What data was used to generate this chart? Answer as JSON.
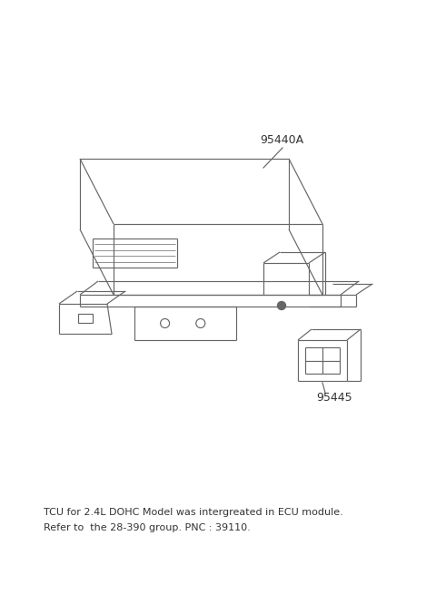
{
  "bg_color": "#ffffff",
  "line_color": "#666666",
  "text_color": "#333333",
  "label_95440A": "95440A",
  "label_95445": "95445",
  "note_line1": "TCU for 2.4L DOHC Model was intergreated in ECU module.",
  "note_line2": "Refer to  the 28-390 group. PNC : 39110.",
  "note_fontsize": 8.0,
  "label_fontsize": 9.0
}
